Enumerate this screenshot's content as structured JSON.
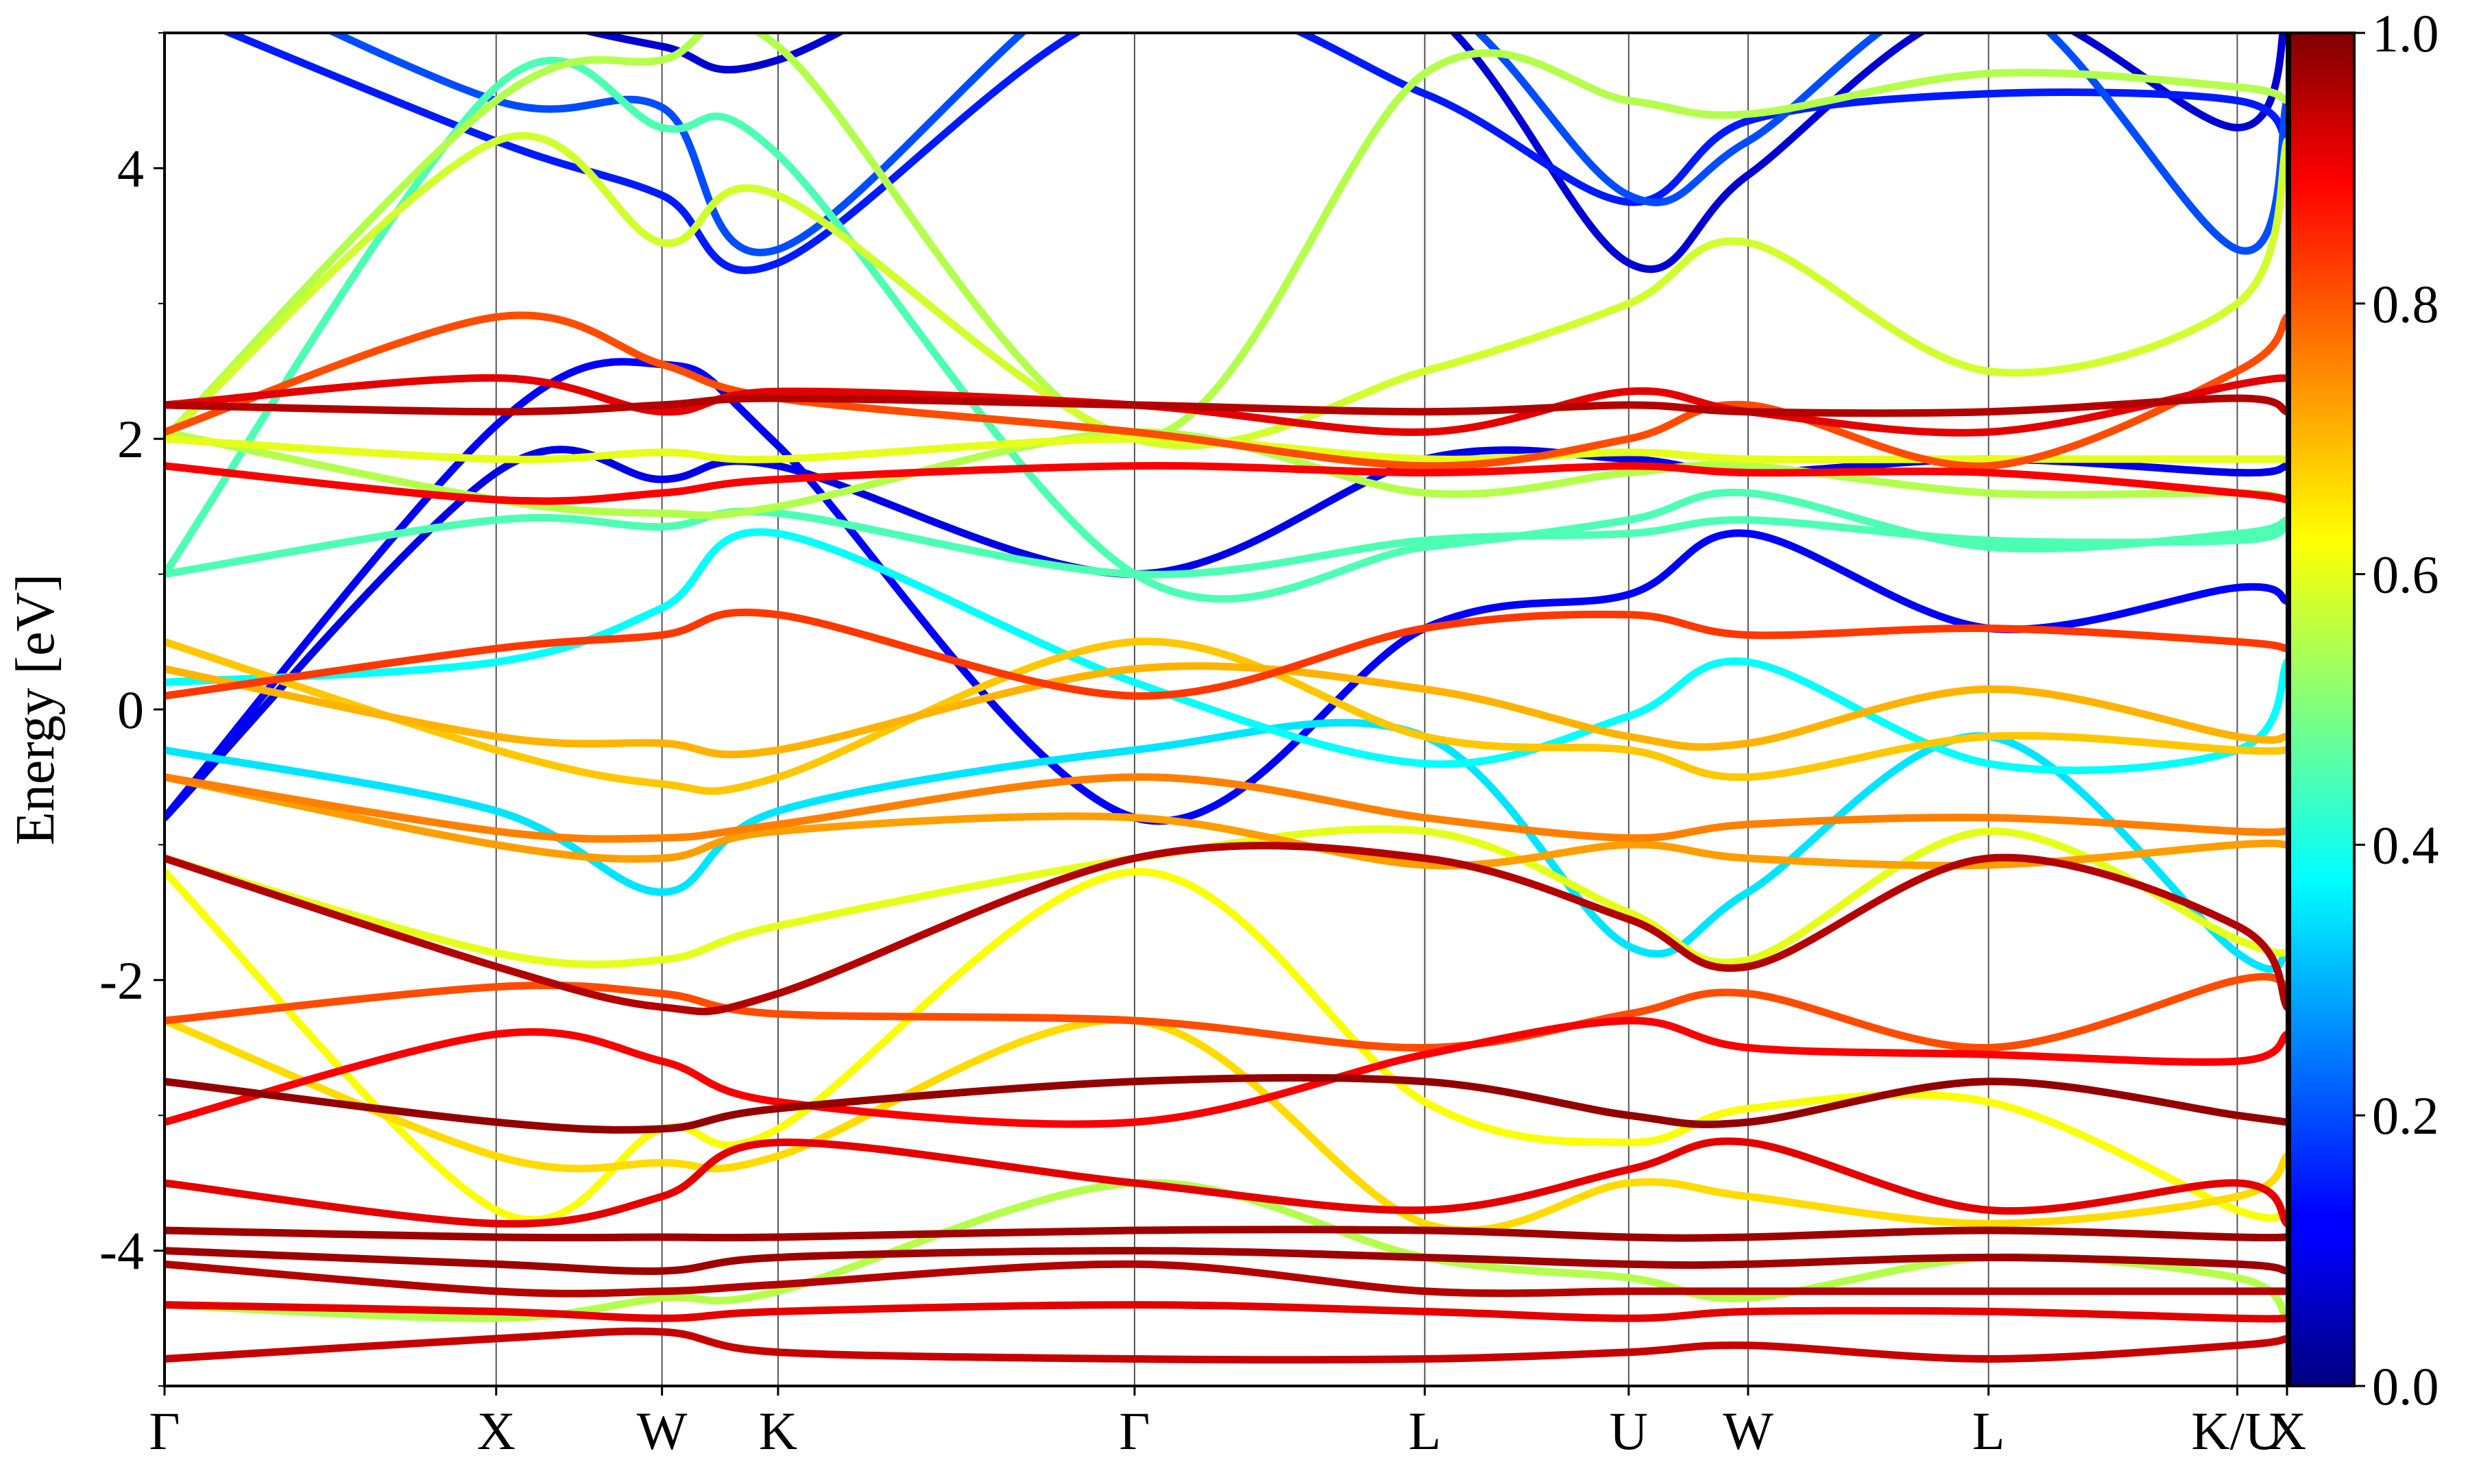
{
  "chart_data": {
    "type": "line",
    "title": "",
    "xlabel": "",
    "ylabel": "Energy [eV]",
    "ylim": [
      -5,
      5
    ],
    "yticks": [
      -4,
      -2,
      0,
      2,
      4
    ],
    "ytick_labels": [
      "-4",
      "-2",
      "0",
      "2",
      "4"
    ],
    "xlim": [
      0,
      12.8
    ],
    "kpoints": [
      {
        "label": "Γ",
        "x": 0.0
      },
      {
        "label": "X",
        "x": 2.0
      },
      {
        "label": "W",
        "x": 3.0
      },
      {
        "label": "K",
        "x": 3.7
      },
      {
        "label": "Γ",
        "x": 5.85
      },
      {
        "label": "L",
        "x": 7.6
      },
      {
        "label": "U",
        "x": 8.83
      },
      {
        "label": "W",
        "x": 9.55
      },
      {
        "label": "L",
        "x": 11.0
      },
      {
        "label": "K/U",
        "x": 12.5
      },
      {
        "label": "X",
        "x": 12.8
      }
    ],
    "colorbar": {
      "colormap": "jet",
      "range": [
        0.0,
        1.0
      ],
      "ticks": [
        0.0,
        0.2,
        0.4,
        0.6,
        0.8,
        1.0
      ],
      "tick_labels": [
        "0.0",
        "0.2",
        "0.4",
        "0.6",
        "0.8",
        "1.0"
      ]
    },
    "grid": "vertical lines at high-symmetry points",
    "legend": "none",
    "series": [
      {
        "weight": 0.98,
        "y": [
          -2.75,
          -3.05,
          -3.1,
          -2.95,
          -2.75,
          -2.75,
          -3.0,
          -3.05,
          -2.75,
          -3.0,
          -3.05
        ]
      },
      {
        "weight": 0.97,
        "y": [
          -3.85,
          -3.9,
          -3.9,
          -3.9,
          -3.85,
          -3.85,
          -3.9,
          -3.9,
          -3.85,
          -3.9,
          -3.9
        ]
      },
      {
        "weight": 0.97,
        "y": [
          -4.0,
          -4.1,
          -4.15,
          -4.05,
          -4.0,
          -4.05,
          -4.1,
          -4.1,
          -4.05,
          -4.1,
          -4.15
        ]
      },
      {
        "weight": 0.95,
        "y": [
          -4.1,
          -4.3,
          -4.3,
          -4.25,
          -4.1,
          -4.3,
          -4.3,
          -4.3,
          -4.3,
          -4.3,
          -4.3
        ]
      },
      {
        "weight": 0.9,
        "y": [
          -4.4,
          -4.45,
          -4.5,
          -4.45,
          -4.4,
          -4.45,
          -4.5,
          -4.45,
          -4.45,
          -4.5,
          -4.5
        ]
      },
      {
        "weight": 0.93,
        "y": [
          -4.8,
          -4.65,
          -4.6,
          -4.75,
          -4.8,
          -4.8,
          -4.75,
          -4.7,
          -4.8,
          -4.7,
          -4.65
        ]
      },
      {
        "weight": 0.95,
        "y": [
          -1.1,
          -1.9,
          -2.2,
          -2.1,
          -1.1,
          -1.1,
          -1.55,
          -1.9,
          -1.1,
          -1.6,
          -2.2
        ]
      },
      {
        "weight": 0.88,
        "y": [
          -3.05,
          -2.4,
          -2.6,
          -2.9,
          -3.05,
          -2.55,
          -2.3,
          -2.5,
          -2.55,
          -2.6,
          -2.4
        ]
      },
      {
        "weight": 0.9,
        "y": [
          -3.5,
          -3.8,
          -3.6,
          -3.2,
          -3.5,
          -3.7,
          -3.4,
          -3.2,
          -3.7,
          -3.5,
          -3.8
        ]
      },
      {
        "weight": 0.8,
        "y": [
          -2.3,
          -2.05,
          -2.1,
          -2.25,
          -2.3,
          -2.5,
          -2.25,
          -2.1,
          -2.5,
          -2.0,
          -2.05
        ]
      },
      {
        "weight": 0.75,
        "y": [
          -0.5,
          -0.9,
          -0.95,
          -0.85,
          -0.5,
          -0.8,
          -0.95,
          -0.85,
          -0.8,
          -0.9,
          -0.9
        ]
      },
      {
        "weight": 0.72,
        "y": [
          -0.5,
          -1.0,
          -1.1,
          -0.9,
          -0.8,
          -1.15,
          -1.0,
          -1.1,
          -1.15,
          -1.0,
          -1.0
        ]
      },
      {
        "weight": 0.82,
        "y": [
          0.1,
          0.45,
          0.55,
          0.7,
          0.1,
          0.6,
          0.7,
          0.55,
          0.6,
          0.5,
          0.45
        ]
      },
      {
        "weight": 0.7,
        "y": [
          0.3,
          -0.2,
          -0.25,
          -0.3,
          0.3,
          0.15,
          -0.2,
          -0.25,
          0.15,
          -0.2,
          -0.2
        ]
      },
      {
        "weight": 0.68,
        "y": [
          0.5,
          -0.3,
          -0.55,
          -0.5,
          0.5,
          -0.2,
          -0.3,
          -0.5,
          -0.2,
          -0.3,
          -0.3
        ]
      },
      {
        "weight": 0.6,
        "y": [
          -1.1,
          -1.8,
          -1.85,
          -1.6,
          -1.1,
          -0.9,
          -1.5,
          -1.85,
          -0.9,
          -1.7,
          -1.8
        ]
      },
      {
        "weight": 0.62,
        "y": [
          -1.2,
          -3.7,
          -3.1,
          -3.1,
          -1.2,
          -2.9,
          -3.2,
          -2.95,
          -2.9,
          -3.7,
          -3.7
        ]
      },
      {
        "weight": 0.66,
        "y": [
          -2.3,
          -3.3,
          -3.35,
          -3.3,
          -2.3,
          -3.8,
          -3.5,
          -3.6,
          -3.8,
          -3.6,
          -3.3
        ]
      },
      {
        "weight": 0.55,
        "y": [
          -4.4,
          -4.5,
          -4.35,
          -4.3,
          -3.5,
          -4.05,
          -4.2,
          -4.35,
          -4.05,
          -4.2,
          -4.5
        ]
      },
      {
        "weight": 0.88,
        "y": [
          1.8,
          1.55,
          1.6,
          1.7,
          1.8,
          1.75,
          1.8,
          1.75,
          1.75,
          1.6,
          1.55
        ]
      },
      {
        "weight": 0.95,
        "y": [
          2.25,
          2.2,
          2.25,
          2.3,
          2.25,
          2.2,
          2.25,
          2.2,
          2.2,
          2.3,
          2.2
        ]
      },
      {
        "weight": 0.9,
        "y": [
          2.25,
          2.45,
          2.2,
          2.35,
          2.25,
          2.05,
          2.35,
          2.2,
          2.05,
          2.4,
          2.45
        ]
      },
      {
        "weight": 0.8,
        "y": [
          2.05,
          2.9,
          2.55,
          2.3,
          2.05,
          1.8,
          2.0,
          2.25,
          1.8,
          2.5,
          2.9
        ]
      },
      {
        "weight": 0.6,
        "y": [
          2.0,
          1.85,
          1.9,
          1.85,
          2.0,
          1.85,
          1.9,
          1.85,
          1.85,
          1.85,
          1.85
        ]
      },
      {
        "weight": 0.55,
        "y": [
          2.05,
          1.55,
          1.45,
          1.5,
          2.05,
          1.6,
          1.75,
          1.8,
          1.6,
          1.6,
          1.55
        ]
      },
      {
        "weight": 0.58,
        "y": [
          2.0,
          4.2,
          3.45,
          3.8,
          2.0,
          2.5,
          3.0,
          3.45,
          2.5,
          3.0,
          4.2
        ]
      },
      {
        "weight": 0.55,
        "y": [
          2.0,
          4.5,
          4.8,
          4.9,
          2.0,
          4.7,
          4.5,
          4.4,
          4.7,
          4.6,
          4.5
        ]
      },
      {
        "weight": 0.45,
        "y": [
          1.0,
          4.6,
          4.3,
          4.1,
          1.0,
          1.2,
          1.4,
          1.6,
          1.2,
          1.3,
          1.4
        ]
      },
      {
        "weight": 0.45,
        "y": [
          1.0,
          1.4,
          1.35,
          1.45,
          1.0,
          1.25,
          1.3,
          1.4,
          1.25,
          1.25,
          1.35
        ]
      },
      {
        "weight": 0.38,
        "y": [
          0.2,
          0.35,
          0.75,
          1.3,
          0.2,
          -0.4,
          -0.05,
          0.35,
          -0.4,
          -0.3,
          0.35
        ]
      },
      {
        "weight": 0.35,
        "y": [
          -0.3,
          -0.75,
          -1.35,
          -0.75,
          -0.3,
          -0.2,
          -1.75,
          -1.35,
          -0.2,
          -1.8,
          -1.8
        ]
      },
      {
        "weight": 0.12,
        "y": [
          -0.8,
          2.1,
          2.55,
          1.95,
          -0.8,
          0.6,
          0.85,
          1.3,
          0.6,
          0.9,
          0.8
        ]
      },
      {
        "weight": 0.1,
        "y": [
          -0.8,
          1.75,
          1.7,
          1.8,
          1.0,
          1.85,
          1.85,
          1.75,
          1.85,
          1.75,
          1.8
        ]
      },
      {
        "weight": 0.15,
        "y": [
          5.2,
          4.2,
          3.8,
          3.3,
          5.2,
          4.55,
          3.75,
          4.35,
          4.55,
          4.5,
          4.2
        ]
      },
      {
        "weight": 0.08,
        "y": [
          6.0,
          5.2,
          4.9,
          4.8,
          6.0,
          5.2,
          3.3,
          3.95,
          5.2,
          4.3,
          5.2
        ]
      },
      {
        "weight": 0.2,
        "y": [
          5.6,
          4.5,
          4.45,
          3.4,
          5.6,
          5.3,
          3.8,
          4.2,
          5.3,
          3.4,
          4.5
        ]
      }
    ]
  }
}
